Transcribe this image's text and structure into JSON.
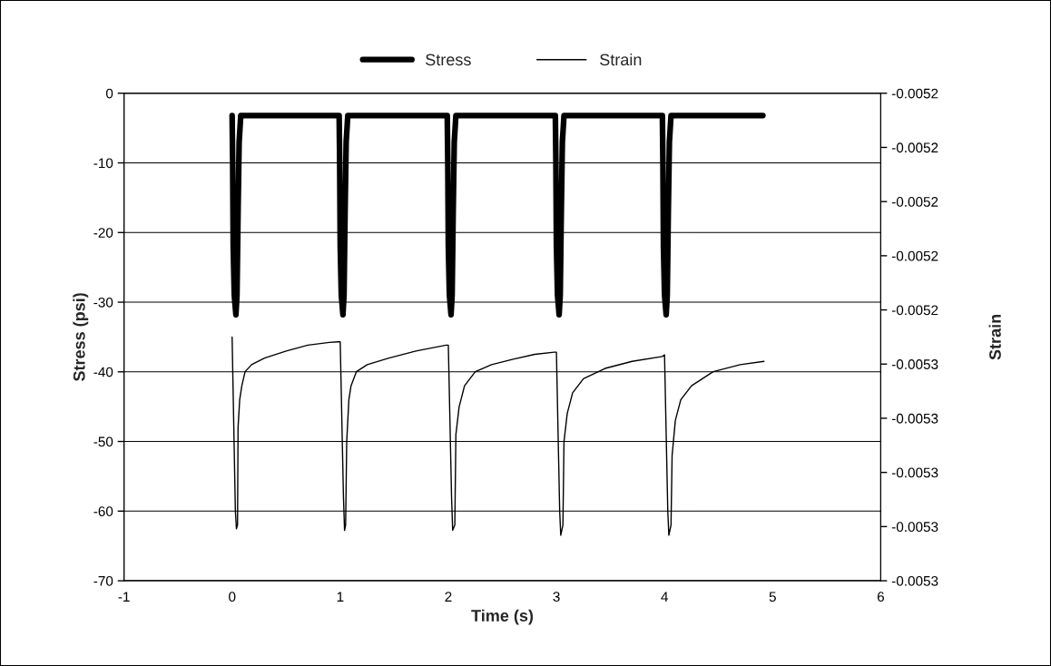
{
  "chart_data": {
    "type": "line",
    "xlabel": "Time (s)",
    "ylabel": "Stress (psi)",
    "y2label": "Strain",
    "legend": "top",
    "grid": "y",
    "line_style": "solid",
    "marker": "none",
    "xlim": [
      -1,
      6
    ],
    "xticks": [
      -1,
      0,
      1,
      2,
      3,
      4,
      5,
      6
    ],
    "ylim": [
      -70,
      0
    ],
    "yticks": [
      -70,
      -60,
      -50,
      -40,
      -30,
      -20,
      -10,
      0
    ],
    "y2lim": [
      -0.005295,
      -0.005205
    ],
    "y2ticks": [
      {
        "value": -0.005295,
        "label": "-0.0053"
      },
      {
        "value": -0.005285,
        "label": "-0.0053"
      },
      {
        "value": -0.005275,
        "label": "-0.0053"
      },
      {
        "value": -0.005265,
        "label": "-0.0053"
      },
      {
        "value": -0.005255,
        "label": "-0.0053"
      },
      {
        "value": -0.005245,
        "label": "-0.0052"
      },
      {
        "value": -0.005235,
        "label": "-0.0052"
      },
      {
        "value": -0.005225,
        "label": "-0.0052"
      },
      {
        "value": -0.005215,
        "label": "-0.0052"
      },
      {
        "value": -0.005205,
        "label": "-0.0052"
      }
    ],
    "series": [
      {
        "name": "Stress",
        "color": "#000000",
        "x": [
          0,
          0.005,
          0.01,
          0.02,
          0.035,
          0.045,
          0.055,
          0.065,
          0.08,
          0.99,
          0.995,
          1.0,
          1.01,
          1.025,
          1.035,
          1.045,
          1.055,
          1.07,
          1.99,
          1.995,
          2.0,
          2.01,
          2.025,
          2.035,
          2.045,
          2.055,
          2.07,
          2.99,
          2.995,
          3.0,
          3.01,
          3.025,
          3.035,
          3.045,
          3.055,
          3.07,
          3.98,
          3.985,
          3.99,
          4.0,
          4.015,
          4.025,
          4.035,
          4.045,
          4.06,
          4.91
        ],
        "values": [
          -3.2,
          -10,
          -22,
          -29,
          -31.8,
          -29,
          -17,
          -7,
          -3.2,
          -3.2,
          -10,
          -22,
          -29,
          -31.8,
          -29,
          -17,
          -7,
          -3.2,
          -3.2,
          -10,
          -22,
          -29,
          -31.8,
          -29,
          -17,
          -7,
          -3.2,
          -3.2,
          -10,
          -22,
          -29,
          -31.8,
          -29,
          -17,
          -7,
          -3.2,
          -3.2,
          -10,
          -22,
          -29,
          -31.8,
          -29,
          -17,
          -7,
          -3.2,
          -3.2
        ]
      },
      {
        "name": "Strain",
        "color": "#000000",
        "axis": "y2",
        "x": [
          0,
          0.03,
          0.04,
          0.05,
          0.055,
          0.07,
          0.09,
          0.12,
          0.18,
          0.3,
          0.5,
          0.7,
          0.9,
          0.98,
          1.0,
          1.03,
          1.04,
          1.05,
          1.06,
          1.08,
          1.1,
          1.15,
          1.25,
          1.45,
          1.7,
          1.98,
          2.0,
          2.03,
          2.04,
          2.06,
          2.07,
          2.1,
          2.15,
          2.25,
          2.4,
          2.6,
          2.8,
          2.98,
          3.0,
          3.03,
          3.04,
          3.06,
          3.07,
          3.1,
          3.15,
          3.25,
          3.45,
          3.7,
          3.98,
          4.0,
          4.03,
          4.04,
          4.06,
          4.07,
          4.1,
          4.15,
          4.25,
          4.45,
          4.7,
          4.92
        ],
        "values": [
          -0.00525,
          -0.0052821,
          -0.0052854,
          -0.0052847,
          -0.0052667,
          -0.0052616,
          -0.005259,
          -0.0052564,
          -0.0052551,
          -0.0052539,
          -0.0052526,
          -0.0052515,
          -0.005251,
          -0.0052509,
          -0.0052509,
          -0.0052796,
          -0.0052857,
          -0.0052847,
          -0.0052693,
          -0.0052616,
          -0.005259,
          -0.0052564,
          -0.0052551,
          -0.0052539,
          -0.0052526,
          -0.0052515,
          -0.0052515,
          -0.0052796,
          -0.0052857,
          -0.0052847,
          -0.005268,
          -0.0052629,
          -0.005259,
          -0.0052564,
          -0.0052551,
          -0.0052541,
          -0.0052532,
          -0.0052528,
          -0.0052528,
          -0.0052821,
          -0.0052866,
          -0.0052847,
          -0.0052693,
          -0.0052641,
          -0.0052603,
          -0.0052577,
          -0.0052558,
          -0.0052545,
          -0.0052536,
          -0.0052533,
          -0.0052821,
          -0.0052866,
          -0.0052847,
          -0.0052719,
          -0.0052654,
          -0.0052616,
          -0.005259,
          -0.0052564,
          -0.0052551,
          -0.0052545
        ]
      }
    ]
  }
}
